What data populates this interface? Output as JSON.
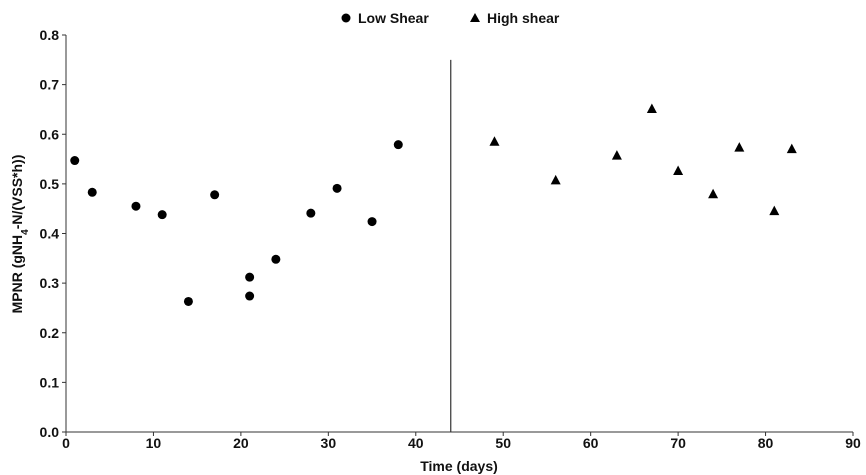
{
  "chart_data": {
    "type": "scatter",
    "xlabel": "Time (days)",
    "ylabel_parts": [
      "MPNR (gNH",
      "4",
      "-N/(VSS*h))"
    ],
    "xlim": [
      0,
      90
    ],
    "ylim": [
      0,
      0.8
    ],
    "x_ticks": [
      0,
      10,
      20,
      30,
      40,
      50,
      60,
      70,
      80,
      90
    ],
    "y_ticks": [
      "0.0",
      "0.1",
      "0.2",
      "0.3",
      "0.4",
      "0.5",
      "0.6",
      "0.7",
      "0.8"
    ],
    "grid": false,
    "legend_position": "top-center",
    "vertical_line_x": 44,
    "series": [
      {
        "name": "Low Shear",
        "marker": "circle",
        "color": "#000000",
        "points": [
          [
            1,
            0.547
          ],
          [
            3,
            0.483
          ],
          [
            8,
            0.455
          ],
          [
            11,
            0.438
          ],
          [
            14,
            0.263
          ],
          [
            17,
            0.478
          ],
          [
            21,
            0.312
          ],
          [
            21,
            0.274
          ],
          [
            24,
            0.348
          ],
          [
            28,
            0.441
          ],
          [
            31,
            0.491
          ],
          [
            35,
            0.424
          ],
          [
            38,
            0.579
          ]
        ]
      },
      {
        "name": "High shear",
        "marker": "triangle",
        "color": "#000000",
        "points": [
          [
            49,
            0.585
          ],
          [
            56,
            0.507
          ],
          [
            63,
            0.557
          ],
          [
            67,
            0.651
          ],
          [
            70,
            0.526
          ],
          [
            74,
            0.479
          ],
          [
            77,
            0.573
          ],
          [
            81,
            0.445
          ],
          [
            83,
            0.57
          ]
        ]
      }
    ]
  }
}
